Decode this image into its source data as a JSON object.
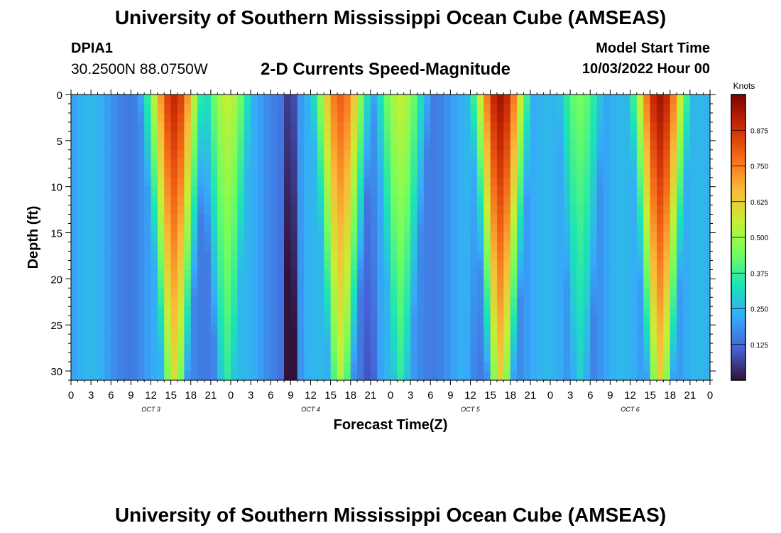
{
  "header": {
    "title": "University of Southern Mississippi Ocean Cube (AMSEAS)",
    "station_id": "DPIA1",
    "coordinates": "30.2500N  88.0750W",
    "subtitle": "2-D Currents Speed-Magnitude",
    "model_start_label": "Model Start Time",
    "model_start_value": "10/03/2022 Hour 00"
  },
  "footer": {
    "title": "University of Southern Mississippi Ocean Cube (AMSEAS)"
  },
  "chart_data": {
    "type": "heatmap",
    "title": "2-D Currents Speed-Magnitude",
    "xlabel": "Forecast Time(Z)",
    "ylabel": "Depth (ft)",
    "xlim": [
      0,
      96
    ],
    "ylim": [
      31,
      0
    ],
    "x_tick_labels": [
      "0",
      "3",
      "6",
      "9",
      "12",
      "15",
      "18",
      "21",
      "0",
      "3",
      "6",
      "9",
      "12",
      "15",
      "18",
      "21",
      "0",
      "3",
      "6",
      "9",
      "12",
      "15",
      "18",
      "21",
      "0",
      "3",
      "6",
      "9",
      "12",
      "15",
      "18",
      "21",
      "0"
    ],
    "y_ticks": [
      0,
      5,
      10,
      15,
      20,
      25,
      30
    ],
    "day_labels": [
      {
        "label": "OCT 3",
        "hour": 12
      },
      {
        "label": "OCT 4",
        "hour": 36
      },
      {
        "label": "OCT 5",
        "hour": 60
      },
      {
        "label": "OCT 6",
        "hour": 84
      }
    ],
    "colorbar": {
      "label": "Knots",
      "range": [
        0.0,
        1.0
      ],
      "ticks": [
        "0.125",
        "0.250",
        "0.375",
        "0.500",
        "0.625",
        "0.750",
        "0.875"
      ],
      "colors": [
        "#30123b",
        "#4662d7",
        "#36aaf9",
        "#1ae4b6",
        "#72fe5e",
        "#c7ef34",
        "#faba39",
        "#f66b19",
        "#ca2a04",
        "#7a0403"
      ]
    },
    "surface_maxima": [
      {
        "hour": 15.5,
        "value": 0.9
      },
      {
        "hour": 23.5,
        "value": 0.55
      },
      {
        "hour": 40.5,
        "value": 0.8
      },
      {
        "hour": 49.5,
        "value": 0.55
      },
      {
        "hour": 64.5,
        "value": 0.95
      },
      {
        "hour": 76.5,
        "value": 0.45
      },
      {
        "hour": 88.5,
        "value": 0.95
      }
    ]
  }
}
